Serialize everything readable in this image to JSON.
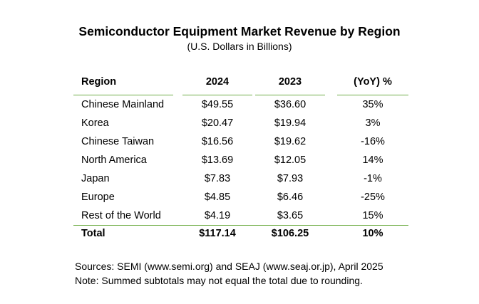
{
  "chart_data": {
    "type": "table",
    "title": "Semiconductor Equipment Market Revenue by Region",
    "subtitle": "(U.S. Dollars in Billions)",
    "columns": [
      "Region",
      "2024",
      "2023",
      "(YoY) %"
    ],
    "rows": [
      [
        "Chinese Mainland",
        "$49.55",
        "$36.60",
        "35%"
      ],
      [
        "Korea",
        "$20.47",
        "$19.94",
        "3%"
      ],
      [
        "Chinese Taiwan",
        "$16.56",
        "$19.62",
        "-16%"
      ],
      [
        "North America",
        "$13.69",
        "$12.05",
        "14%"
      ],
      [
        "Japan",
        "$7.83",
        "$7.93",
        "-1%"
      ],
      [
        "Europe",
        "$4.85",
        "$6.46",
        "-25%"
      ],
      [
        "Rest of the World",
        "$4.19",
        "$3.65",
        "15%"
      ]
    ],
    "total": [
      "Total",
      "$117.14",
      "$106.25",
      "10%"
    ],
    "values_2024": [
      49.55,
      20.47,
      16.56,
      13.69,
      7.83,
      4.85,
      4.19
    ],
    "values_2023": [
      36.6,
      19.94,
      19.62,
      12.05,
      7.93,
      6.46,
      3.65
    ],
    "yoy_percent": [
      35,
      3,
      -16,
      14,
      -1,
      -25,
      15
    ],
    "total_2024": 117.14,
    "total_2023": 106.25,
    "total_yoy_percent": 10
  },
  "footer": {
    "sources": "Sources: SEMI (www.semi.org) and SEAJ (www.seaj.or.jp), April 2025",
    "note": "Note: Summed subtotals may not equal the total due to rounding."
  },
  "colors": {
    "rule": "#70ad47",
    "text": "#000000",
    "background": "#ffffff"
  }
}
